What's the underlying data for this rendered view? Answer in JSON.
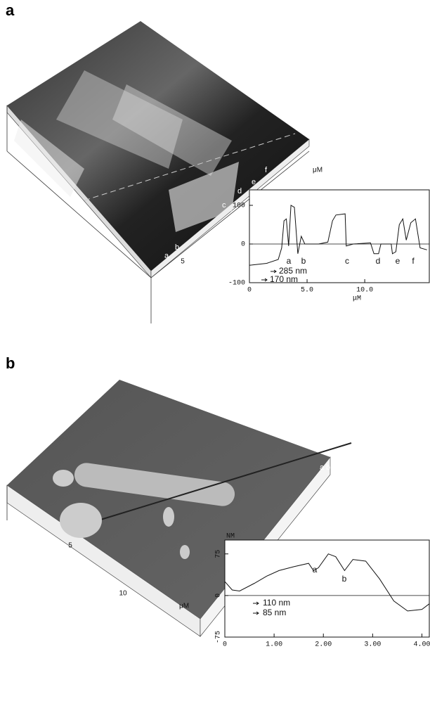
{
  "panels": [
    {
      "label": "a",
      "image_labels": [
        "a",
        "b",
        "c",
        "d",
        "e",
        "f"
      ],
      "image_axis": [
        "μM",
        "5"
      ]
    },
    {
      "label": "b",
      "image_labels": [
        "a b"
      ],
      "image_axis": [
        "5",
        "10",
        "μM"
      ]
    }
  ],
  "chart_data": [
    {
      "type": "line",
      "x": [
        0,
        1.5,
        2.5,
        2.8,
        3.0,
        3.2,
        3.4,
        3.6,
        3.9,
        4.2,
        4.5,
        4.8,
        6.0,
        6.8,
        7.2,
        7.5,
        8.3,
        8.4,
        9.0,
        10.5,
        10.8,
        11.2,
        11.4,
        12.3,
        12.4,
        12.7,
        13.0,
        13.3,
        13.6,
        14.0,
        14.4,
        14.8,
        15.4
      ],
      "series": [
        {
          "color": "#111",
          "values": [
            -55,
            -50,
            -40,
            -10,
            60,
            65,
            -5,
            100,
            95,
            -25,
            20,
            0,
            0,
            5,
            60,
            75,
            78,
            -5,
            0,
            3,
            -25,
            -25,
            0,
            0,
            -25,
            -20,
            50,
            65,
            10,
            55,
            65,
            -10,
            -15
          ]
        }
      ],
      "xlim": [
        0,
        15.6
      ],
      "ylim": [
        -100,
        140
      ],
      "xticks": [
        0,
        {
          "value": 5,
          "label": "5.0"
        },
        {
          "value": 10,
          "label": "10.0"
        }
      ],
      "yticks": [
        -100,
        0,
        100
      ],
      "xlabel": "μM",
      "zero_line": true,
      "annotations": [
        "a",
        "b",
        "c",
        "d",
        "e",
        "f"
      ],
      "dimensions": [
        "285 nm",
        "170 nm"
      ]
    },
    {
      "type": "line",
      "x": [
        0,
        0.15,
        0.3,
        0.6,
        0.85,
        1.1,
        1.4,
        1.7,
        1.8,
        1.9,
        2.1,
        2.25,
        2.43,
        2.6,
        2.86,
        3.14,
        3.43,
        3.71,
        4.0,
        4.15
      ],
      "series": [
        {
          "color": "#111",
          "values": [
            25,
            10,
            8,
            22,
            35,
            45,
            52,
            58,
            45,
            50,
            75,
            70,
            45,
            65,
            62,
            30,
            -10,
            -28,
            -25,
            -15
          ]
        }
      ],
      "xlim": [
        0,
        4.15
      ],
      "ylim": [
        -75,
        100
      ],
      "xticks": [
        0,
        {
          "value": 1,
          "label": "1.00"
        },
        {
          "value": 2,
          "label": "2.00"
        },
        {
          "value": 3,
          "label": "3.00"
        },
        {
          "value": 4,
          "label": "4.00"
        }
      ],
      "yticks": [
        -75,
        0,
        75
      ],
      "ylabel": "NM",
      "zero_line": true,
      "annotations": [
        "a",
        "b"
      ],
      "dimensions": [
        "110 nm",
        "85 nm"
      ]
    }
  ]
}
